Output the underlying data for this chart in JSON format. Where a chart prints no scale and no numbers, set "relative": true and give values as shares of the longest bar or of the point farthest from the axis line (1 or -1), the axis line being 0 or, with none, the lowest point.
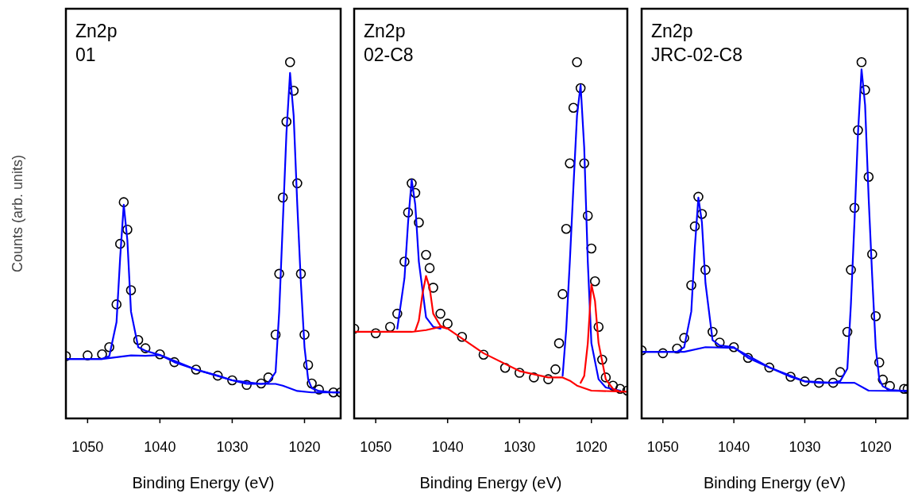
{
  "chart_data": [
    {
      "type": "scatter",
      "xlabel": "Binding Energy (eV)",
      "ylabel": "Counts (arb. units)",
      "annotations": [
        "Zn2p",
        "01"
      ],
      "xlim": [
        1053,
        1015
      ],
      "xticks": [
        1050,
        1040,
        1030,
        1020
      ],
      "relative": true,
      "series": [
        {
          "marker": "circle",
          "color": "#000000",
          "x": [
            1053,
            1050,
            1048,
            1047,
            1046,
            1045.5,
            1045,
            1044.5,
            1044,
            1043,
            1042,
            1040,
            1038,
            1035,
            1032,
            1030,
            1028,
            1026,
            1025,
            1024,
            1023.5,
            1023,
            1022.5,
            1022,
            1021.5,
            1021,
            1020.5,
            1020,
            1019.5,
            1019,
            1018,
            1016,
            1015
          ],
          "values": [
            0.175,
            0.177,
            0.18,
            0.2,
            0.32,
            0.49,
            0.607,
            0.53,
            0.36,
            0.22,
            0.197,
            0.18,
            0.158,
            0.137,
            0.12,
            0.107,
            0.094,
            0.098,
            0.115,
            0.235,
            0.406,
            0.62,
            0.833,
            1,
            0.92,
            0.66,
            0.406,
            0.235,
            0.15,
            0.098,
            0.081,
            0.073,
            0.073
          ]
        },
        {
          "type": "line",
          "color": "#0000ff",
          "x": [
            1053,
            1048,
            1047,
            1046,
            1045.5,
            1045,
            1044.5,
            1044,
            1043,
            1042,
            1040,
            1038,
            1035,
            1032,
            1030,
            1028,
            1026,
            1025,
            1024,
            1023.5,
            1023,
            1022.5,
            1022,
            1021.5,
            1021,
            1020.5,
            1020,
            1019.5,
            1019,
            1018,
            1016,
            1015
          ],
          "values": [
            0.167,
            0.167,
            0.175,
            0.27,
            0.45,
            0.6,
            0.5,
            0.3,
            0.2,
            0.19,
            0.178,
            0.158,
            0.137,
            0.12,
            0.107,
            0.097,
            0.097,
            0.1,
            0.13,
            0.3,
            0.55,
            0.8,
            0.97,
            0.85,
            0.6,
            0.38,
            0.2,
            0.11,
            0.085,
            0.077,
            0.073,
            0.073
          ]
        },
        {
          "type": "line",
          "color": "#0000ff",
          "x": [
            1053,
            1048,
            1044,
            1042,
            1040,
            1035,
            1030,
            1026,
            1024,
            1023,
            1021,
            1019,
            1015
          ],
          "values": [
            0.167,
            0.167,
            0.177,
            0.176,
            0.178,
            0.137,
            0.107,
            0.097,
            0.097,
            0.092,
            0.077,
            0.073,
            0.073
          ]
        }
      ]
    },
    {
      "type": "scatter",
      "xlabel": "Binding Energy (eV)",
      "annotations": [
        "Zn2p",
        "02-C8"
      ],
      "xlim": [
        1053,
        1015
      ],
      "xticks": [
        1050,
        1040,
        1030,
        1020
      ],
      "relative": true,
      "series": [
        {
          "marker": "circle",
          "color": "#000000",
          "x": [
            1053,
            1050,
            1048,
            1047,
            1046,
            1045.5,
            1045,
            1044.5,
            1044,
            1043,
            1042.5,
            1042,
            1041,
            1040,
            1038,
            1035,
            1032,
            1030,
            1028,
            1026,
            1025,
            1024.5,
            1024,
            1023.5,
            1023,
            1022.5,
            1022,
            1021.5,
            1021,
            1020.5,
            1020,
            1019.5,
            1019,
            1018.5,
            1018,
            1017,
            1016,
            1015
          ],
          "values": [
            0.252,
            0.239,
            0.257,
            0.294,
            0.44,
            0.578,
            0.66,
            0.633,
            0.55,
            0.459,
            0.422,
            0.367,
            0.294,
            0.266,
            0.229,
            0.179,
            0.142,
            0.128,
            0.115,
            0.11,
            0.138,
            0.211,
            0.349,
            0.532,
            0.716,
            0.872,
            1,
            0.927,
            0.716,
            0.569,
            0.477,
            0.385,
            0.257,
            0.165,
            0.115,
            0.092,
            0.083,
            0.078
          ]
        },
        {
          "type": "line",
          "color": "#0000ff",
          "x": [
            1047,
            1046,
            1045.5,
            1045,
            1044.5,
            1044,
            1043,
            1042,
            1041
          ],
          "values": [
            0.252,
            0.394,
            0.55,
            0.67,
            0.6,
            0.44,
            0.284,
            0.257,
            0.252
          ]
        },
        {
          "type": "line",
          "color": "#0000ff",
          "x": [
            1024,
            1023.5,
            1023,
            1022.5,
            1022,
            1021.5,
            1021,
            1020.5,
            1020,
            1019,
            1018,
            1016
          ],
          "values": [
            0.12,
            0.25,
            0.44,
            0.65,
            0.85,
            0.936,
            0.761,
            0.44,
            0.211,
            0.11,
            0.087,
            0.078
          ]
        },
        {
          "type": "line",
          "color": "#ff0000",
          "x": [
            1053,
            1045,
            1043,
            1041,
            1040,
            1035,
            1030,
            1026,
            1024,
            1023,
            1022,
            1020,
            1015
          ],
          "values": [
            0.243,
            0.243,
            0.248,
            0.257,
            0.252,
            0.183,
            0.133,
            0.115,
            0.115,
            0.106,
            0.092,
            0.078,
            0.075
          ]
        },
        {
          "type": "line",
          "color": "#ff0000",
          "x": [
            1044.5,
            1044,
            1043.5,
            1043,
            1042.5,
            1042,
            1041,
            1040
          ],
          "values": [
            0.246,
            0.275,
            0.349,
            0.4,
            0.367,
            0.294,
            0.26,
            0.252
          ]
        },
        {
          "type": "line",
          "color": "#ff0000",
          "x": [
            1021.5,
            1021,
            1020.5,
            1020,
            1019.5,
            1019,
            1018,
            1017,
            1016
          ],
          "values": [
            0.1,
            0.119,
            0.211,
            0.376,
            0.33,
            0.211,
            0.11,
            0.083,
            0.075
          ]
        }
      ]
    },
    {
      "type": "scatter",
      "xlabel": "Binding Energy (eV)",
      "annotations": [
        "Zn2p",
        "JRC-02-C8"
      ],
      "xlim": [
        1053,
        1015.5
      ],
      "xticks": [
        1050,
        1040,
        1030,
        1020
      ],
      "relative": true,
      "series": [
        {
          "marker": "circle",
          "color": "#000000",
          "x": [
            1053,
            1050,
            1048,
            1047,
            1046,
            1045.5,
            1045,
            1044.5,
            1044,
            1043,
            1042,
            1040,
            1038,
            1035,
            1032,
            1030,
            1028,
            1026,
            1025,
            1024,
            1023.5,
            1023,
            1022.5,
            1022,
            1021.5,
            1021,
            1020.5,
            1020,
            1019.5,
            1019,
            1018,
            1016,
            1015.5
          ],
          "values": [
            0.191,
            0.183,
            0.196,
            0.226,
            0.374,
            0.539,
            0.622,
            0.574,
            0.417,
            0.243,
            0.213,
            0.2,
            0.17,
            0.143,
            0.117,
            0.104,
            0.1,
            0.1,
            0.13,
            0.243,
            0.417,
            0.591,
            0.809,
            1,
            0.922,
            0.678,
            0.461,
            0.287,
            0.157,
            0.109,
            0.091,
            0.083,
            0.083
          ]
        },
        {
          "type": "line",
          "color": "#0000ff",
          "x": [
            1053,
            1048,
            1047,
            1046,
            1045.5,
            1045,
            1044.5,
            1044,
            1043,
            1042,
            1040,
            1038,
            1035,
            1032,
            1030,
            1028,
            1026,
            1025,
            1024,
            1023.5,
            1023,
            1022.5,
            1022,
            1021.5,
            1021,
            1020.5,
            1020,
            1019.5,
            1019,
            1018,
            1016,
            1015.5
          ],
          "values": [
            0.187,
            0.187,
            0.2,
            0.3,
            0.48,
            0.62,
            0.55,
            0.38,
            0.22,
            0.205,
            0.2,
            0.17,
            0.143,
            0.117,
            0.104,
            0.1,
            0.1,
            0.105,
            0.14,
            0.32,
            0.55,
            0.8,
            0.98,
            0.88,
            0.62,
            0.4,
            0.2,
            0.11,
            0.09,
            0.08,
            0.077,
            0.077
          ]
        },
        {
          "type": "line",
          "color": "#0000ff",
          "x": [
            1053,
            1047,
            1044,
            1040,
            1035,
            1030,
            1026,
            1023,
            1021,
            1015.5
          ],
          "values": [
            0.187,
            0.187,
            0.2,
            0.198,
            0.143,
            0.104,
            0.1,
            0.1,
            0.078,
            0.077
          ]
        }
      ]
    }
  ]
}
